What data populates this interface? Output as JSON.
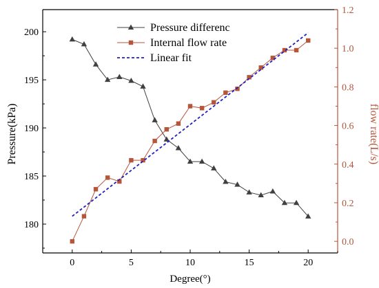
{
  "chart_data": {
    "type": "line",
    "xlabel": "Degree(°)",
    "ylabel_left": "Pressure(kPa)",
    "ylabel_right": "flow rate(L/s)",
    "x_range": [
      -2.5,
      22.5
    ],
    "x_ticks": [
      0,
      5,
      10,
      15,
      20
    ],
    "y_left_range": [
      177,
      202.3
    ],
    "y_left_ticks": [
      180,
      185,
      190,
      195,
      200
    ],
    "y_right_range": [
      -0.06,
      1.2
    ],
    "y_right_ticks": [
      "0.0",
      "0.2",
      "0.4",
      "0.6",
      "0.8",
      "1.0",
      "1.2"
    ],
    "grid": false,
    "legend_position": "top-center",
    "series": [
      {
        "name": "Pressure differenc",
        "axis": "left",
        "color": "#404040",
        "marker": "triangle",
        "x": [
          0,
          1,
          2,
          3,
          4,
          5,
          6,
          7,
          8,
          9,
          10,
          11,
          12,
          13,
          14,
          15,
          16,
          17,
          18,
          19,
          20
        ],
        "values": [
          199.2,
          198.7,
          196.6,
          195.0,
          195.3,
          194.9,
          194.3,
          190.8,
          188.8,
          187.9,
          186.5,
          186.5,
          185.8,
          184.4,
          184.1,
          183.3,
          183.0,
          183.4,
          182.2,
          182.2,
          180.8
        ]
      },
      {
        "name": "Internal flow rate",
        "axis": "right",
        "color": "#b5553a",
        "marker": "square",
        "x": [
          0,
          1,
          2,
          3,
          4,
          5,
          6,
          7,
          8,
          9,
          10,
          11,
          12,
          13,
          14,
          15,
          16,
          17,
          18,
          19,
          20
        ],
        "values": [
          0.0,
          0.13,
          0.27,
          0.33,
          0.31,
          0.42,
          0.42,
          0.52,
          0.58,
          0.61,
          0.7,
          0.69,
          0.72,
          0.77,
          0.79,
          0.85,
          0.9,
          0.95,
          0.99,
          0.99,
          1.04
        ]
      },
      {
        "name": "Linear fit",
        "axis": "right",
        "color": "#1f1fbf",
        "style": "dashed",
        "x": [
          0,
          20
        ],
        "values": [
          0.13,
          1.08
        ]
      }
    ]
  }
}
